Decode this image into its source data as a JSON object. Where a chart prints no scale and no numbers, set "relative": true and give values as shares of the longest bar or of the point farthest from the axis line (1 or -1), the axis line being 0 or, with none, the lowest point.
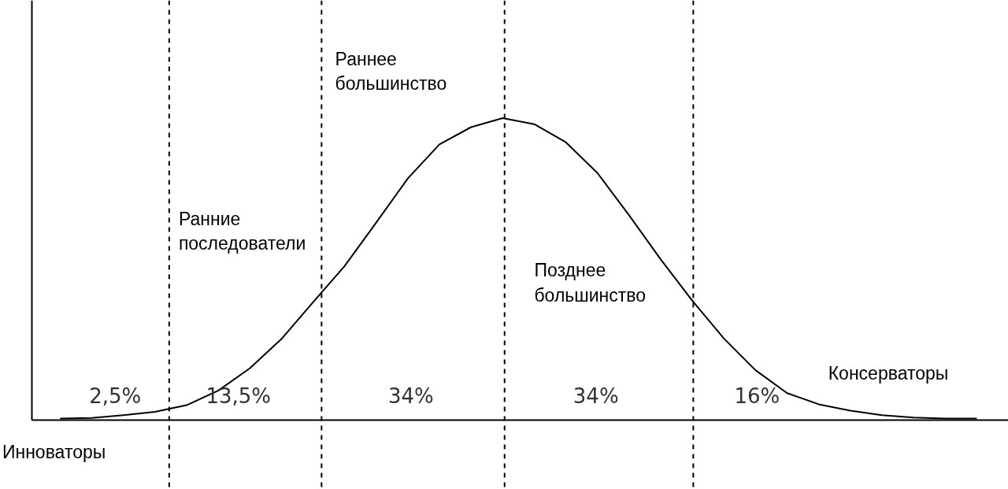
{
  "chart_data": {
    "type": "line",
    "relative": true,
    "line_style": "solid",
    "categories": [
      null,
      null,
      null,
      null,
      null,
      null,
      null,
      null,
      null,
      null,
      null,
      null,
      null,
      null,
      null,
      null,
      null,
      null,
      null,
      null,
      null,
      null,
      null,
      null,
      null,
      null,
      null,
      null,
      null,
      null
    ],
    "series": [
      {
        "color": "#000000",
        "values": [
          0.005,
          0.007,
          0.016,
          0.027,
          0.049,
          0.097,
          0.171,
          0.268,
          0.39,
          0.51,
          0.654,
          0.8,
          0.913,
          0.97,
          1,
          0.98,
          0.92,
          0.818,
          0.678,
          0.532,
          0.395,
          0.27,
          0.165,
          0.089,
          0.052,
          0.031,
          0.016,
          0.008,
          0.005,
          0.005
        ]
      }
    ],
    "annotations": [
      "2,5%",
      "13,5%",
      "34%",
      "34%",
      "16%",
      "Инноваторы",
      "Ранние\nпоследователи",
      "Раннее\nбольшинство",
      "Позднее\nбольшинство",
      "Консерваторы"
    ]
  }
}
